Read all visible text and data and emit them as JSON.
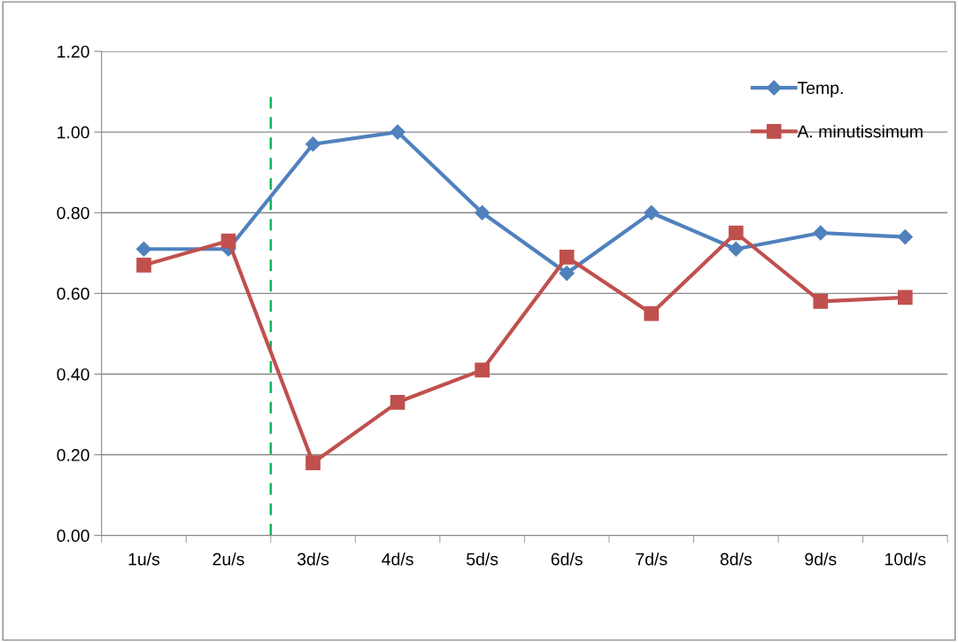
{
  "chart_data": {
    "type": "line",
    "categories": [
      "1u/s",
      "2u/s",
      "3d/s",
      "4d/s",
      "5d/s",
      "6d/s",
      "7d/s",
      "8d/s",
      "9d/s",
      "10d/s"
    ],
    "series": [
      {
        "name": "Temp.",
        "color": "#4f81bd",
        "marker": "diamond",
        "values": [
          0.71,
          0.71,
          0.97,
          1.0,
          0.8,
          0.65,
          0.8,
          0.71,
          0.75,
          0.74
        ]
      },
      {
        "name": "A. minutissimum",
        "color": "#c0504d",
        "marker": "square",
        "values": [
          0.67,
          0.73,
          0.18,
          0.33,
          0.41,
          0.69,
          0.55,
          0.75,
          0.58,
          0.59
        ]
      }
    ],
    "ylim": [
      0,
      1.2
    ],
    "yticks": [
      {
        "value": 0,
        "label": "0.00"
      },
      {
        "value": 0.2,
        "label": "0.20"
      },
      {
        "value": 0.4,
        "label": "0.40"
      },
      {
        "value": 0.6,
        "label": "0.60"
      },
      {
        "value": 0.8,
        "label": "0.80"
      },
      {
        "value": 1.0,
        "label": "1.00"
      },
      {
        "value": 1.2,
        "label": "1.20"
      }
    ],
    "grid": "y",
    "legend": "top right",
    "line_style": "solid"
  }
}
